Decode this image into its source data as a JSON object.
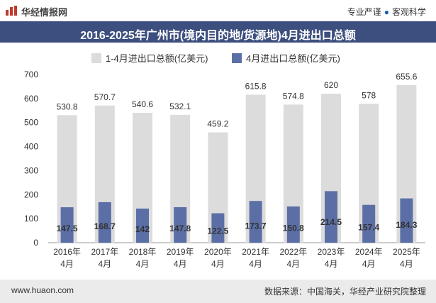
{
  "header": {
    "brand": "华经情报网",
    "tag_left": "专业严谨",
    "tag_sep": "●",
    "tag_right": "客观科学"
  },
  "footer": {
    "url": "www.huaon.com",
    "source": "数据来源：中国海关，华经产业研究院整理"
  },
  "colors": {
    "title_bg": "#3d4f7e",
    "bar_total": "#dcdcdc",
    "bar_april": "#5b6fa6"
  },
  "chart_data": {
    "type": "bar",
    "title": "2016-2025年广州市(境内目的地/货源地)4月进出口总额",
    "categories": [
      "2016年\n4月",
      "2017年\n4月",
      "2018年\n4月",
      "2019年\n4月",
      "2020年\n4月",
      "2021年\n4月",
      "2022年\n4月",
      "2023年\n4月",
      "2024年\n4月",
      "2025年\n4月"
    ],
    "series": [
      {
        "name": "1-4月进出口总额(亿美元)",
        "values": [
          530.8,
          570.7,
          540.6,
          532.1,
          459.2,
          615.8,
          574.8,
          620,
          578,
          655.6
        ],
        "labels": [
          "530.8",
          "570.7",
          "540.6",
          "532.1",
          "459.2",
          "615.8",
          "574.8",
          "620",
          "578",
          "655.6"
        ]
      },
      {
        "name": "4月进出口总额(亿美元)",
        "values": [
          147.5,
          168.7,
          142,
          147.8,
          122.5,
          173.7,
          150.8,
          214.5,
          157.4,
          184.3
        ],
        "labels": [
          "147.5",
          "168.7",
          "142",
          "147.8",
          "122.5",
          "173.7",
          "150.8",
          "214.5",
          "157.4",
          "184.3"
        ]
      }
    ],
    "ylim": [
      0,
      700
    ],
    "yticks": [
      "0",
      "100",
      "200",
      "300",
      "400",
      "500",
      "600",
      "700"
    ],
    "legend_position": "top",
    "grid": false
  }
}
